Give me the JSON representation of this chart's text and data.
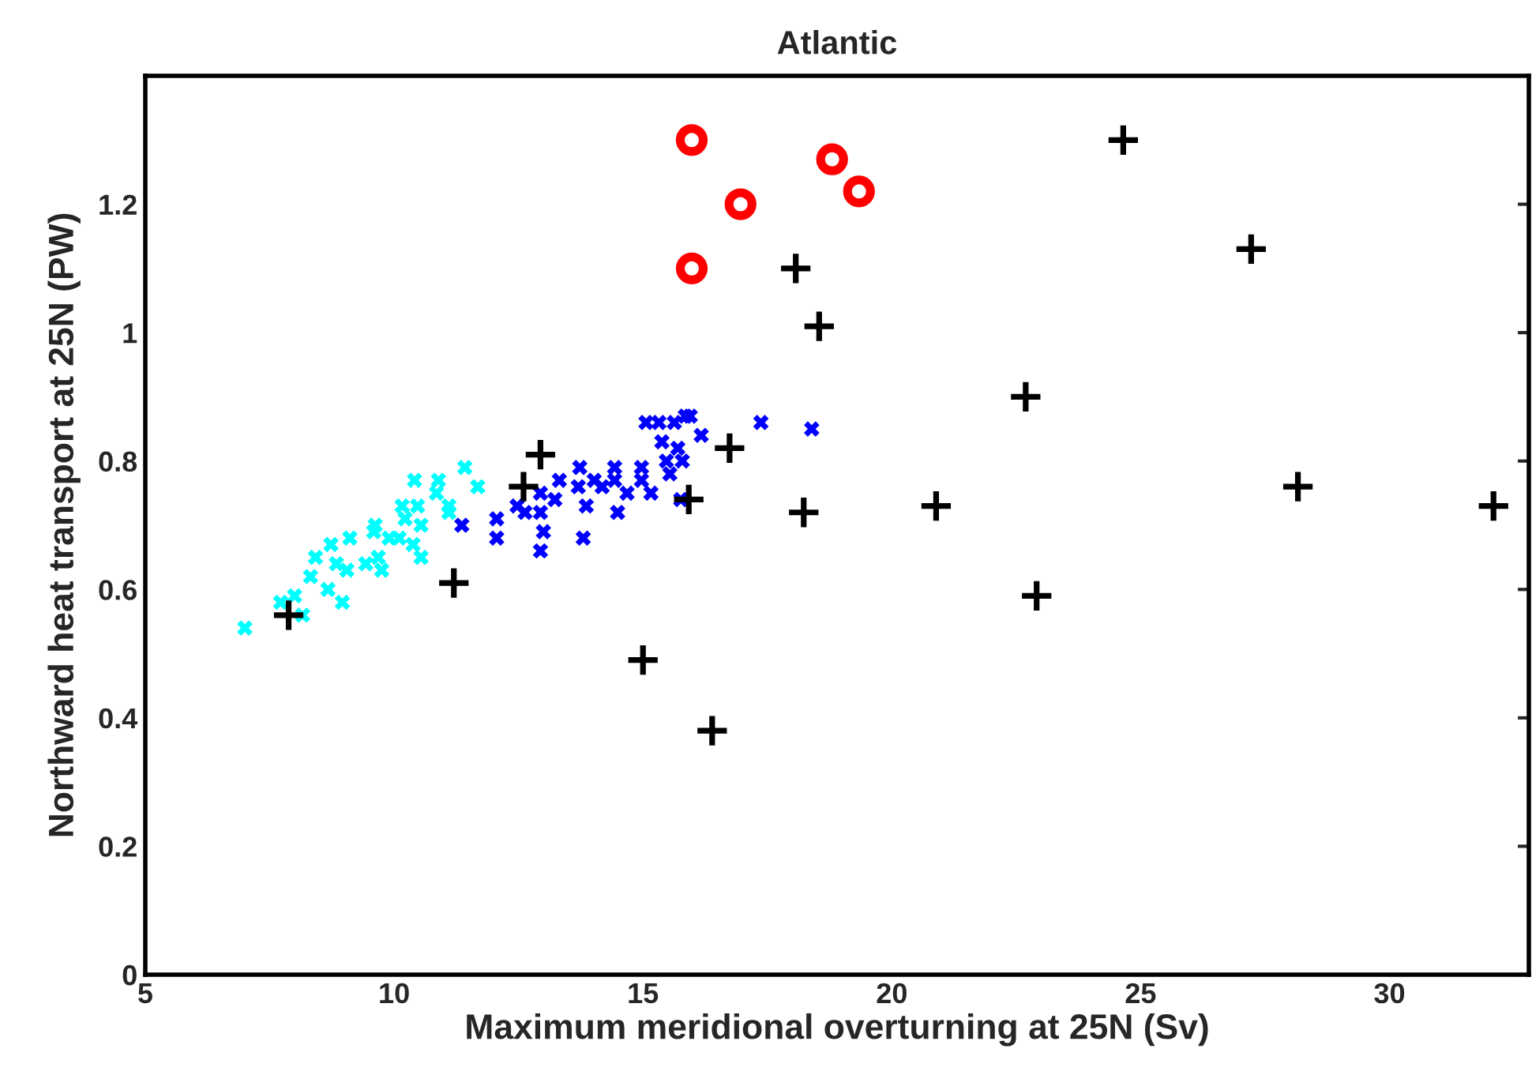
{
  "chart_data": {
    "type": "scatter",
    "title": "Atlantic",
    "xlabel": "Maximum meridional overturning at 25N (Sv)",
    "ylabel": "Northward heat transport at 25N (PW)",
    "xlim": [
      5,
      32.8
    ],
    "ylim": [
      0,
      1.4
    ],
    "xticks": [
      5,
      10,
      15,
      20,
      25,
      30
    ],
    "yticks": [
      0,
      0.2,
      0.4,
      0.6,
      0.8,
      1,
      1.2
    ],
    "grid": false,
    "legend": false,
    "series": [
      {
        "color": "#00ffff",
        "marker": "cross",
        "x": [
          7.0,
          7.72,
          8.0,
          8.16,
          8.32,
          8.42,
          8.67,
          8.73,
          8.96,
          8.84,
          9.11,
          9.05,
          9.43,
          9.62,
          9.68,
          9.75,
          9.59,
          9.9,
          10.16,
          10.1,
          10.22,
          10.47,
          10.54,
          10.38,
          10.54,
          10.41,
          10.89,
          10.85,
          11.1,
          11.1,
          11.42,
          11.68
        ],
        "values": [
          0.54,
          0.58,
          0.59,
          0.56,
          0.62,
          0.65,
          0.6,
          0.67,
          0.58,
          0.64,
          0.68,
          0.63,
          0.64,
          0.7,
          0.65,
          0.63,
          0.69,
          0.68,
          0.73,
          0.68,
          0.71,
          0.73,
          0.7,
          0.67,
          0.65,
          0.77,
          0.77,
          0.75,
          0.73,
          0.72,
          0.79,
          0.76
        ]
      },
      {
        "color": "#0000ff",
        "marker": "cross",
        "x": [
          11.36,
          12.06,
          12.06,
          12.47,
          12.63,
          12.94,
          12.94,
          13.0,
          12.94,
          13.23,
          13.32,
          13.73,
          13.7,
          13.86,
          13.8,
          14.02,
          14.18,
          14.43,
          14.49,
          14.43,
          14.68,
          14.97,
          14.97,
          15.06,
          15.16,
          15.32,
          15.38,
          15.47,
          15.54,
          15.63,
          15.7,
          15.76,
          15.79,
          15.85,
          15.95,
          16.17,
          17.37,
          18.39
        ],
        "values": [
          0.7,
          0.71,
          0.68,
          0.73,
          0.72,
          0.75,
          0.72,
          0.69,
          0.66,
          0.74,
          0.77,
          0.79,
          0.76,
          0.73,
          0.68,
          0.77,
          0.76,
          0.79,
          0.72,
          0.77,
          0.75,
          0.79,
          0.77,
          0.86,
          0.75,
          0.86,
          0.83,
          0.8,
          0.78,
          0.86,
          0.82,
          0.74,
          0.8,
          0.87,
          0.87,
          0.84,
          0.86,
          0.85
        ]
      },
      {
        "color": "#000000",
        "marker": "plus",
        "x": [
          7.88,
          11.2,
          12.6,
          12.94,
          16.74,
          15.92,
          18.23,
          15.0,
          16.39,
          18.07,
          18.54,
          20.89,
          22.69,
          22.91,
          24.65,
          27.22,
          28.16,
          32.09
        ],
        "values": [
          0.56,
          0.61,
          0.76,
          0.81,
          0.82,
          0.74,
          0.72,
          0.49,
          0.38,
          1.1,
          1.01,
          0.73,
          0.9,
          0.59,
          1.3,
          1.13,
          0.76,
          0.73
        ]
      },
      {
        "color": "#ff0000",
        "marker": "circle",
        "x": [
          15.98,
          16.96,
          15.98,
          18.8,
          19.34
        ],
        "values": [
          1.3,
          1.2,
          1.1,
          1.27,
          1.22
        ]
      }
    ]
  }
}
